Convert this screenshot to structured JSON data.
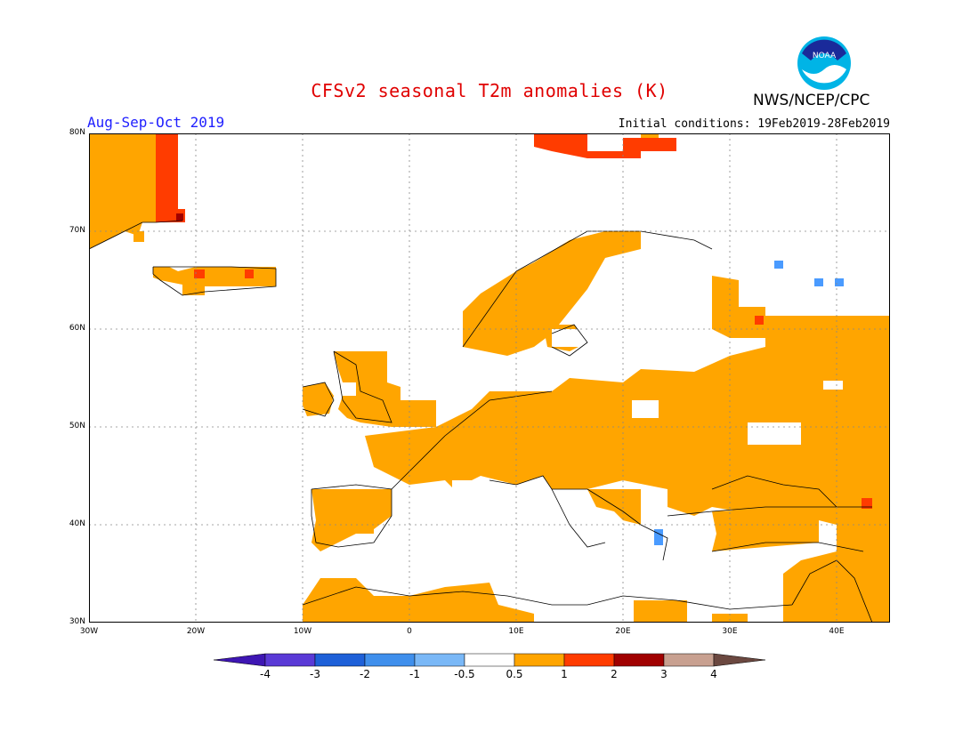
{
  "title": "CFSv2 seasonal T2m anomalies (K)",
  "period": "Aug-Sep-Oct 2019",
  "initial_conditions": "Initial conditions: 19Feb2019-28Feb2019",
  "agency": "NWS/NCEP/CPC",
  "logo_text": "NOAA",
  "map": {
    "lon_range": [
      -30,
      45
    ],
    "lat_range": [
      30,
      80
    ],
    "lat_labels": [
      "80N",
      "70N",
      "60N",
      "50N",
      "40N",
      "30N"
    ],
    "lon_labels": [
      "30W",
      "20W",
      "10W",
      "0",
      "10E",
      "20E",
      "30E",
      "40E"
    ],
    "colors": {
      "warm1": "#ffa500",
      "warm2": "#ff3c00",
      "warm3": "#a00000",
      "cool1": "#4a9bff"
    }
  },
  "colorbar": {
    "labels": [
      "-4",
      "-3",
      "-2",
      "-1",
      "-0.5",
      "0.5",
      "1",
      "2",
      "3",
      "4"
    ],
    "colors": [
      "#3e16b3",
      "#5a3ad6",
      "#1e60d8",
      "#3f8fec",
      "#7ab8f7",
      "#ffffff",
      "#ffa500",
      "#ff3c00",
      "#a00000",
      "#c8a090",
      "#6b4840"
    ]
  }
}
